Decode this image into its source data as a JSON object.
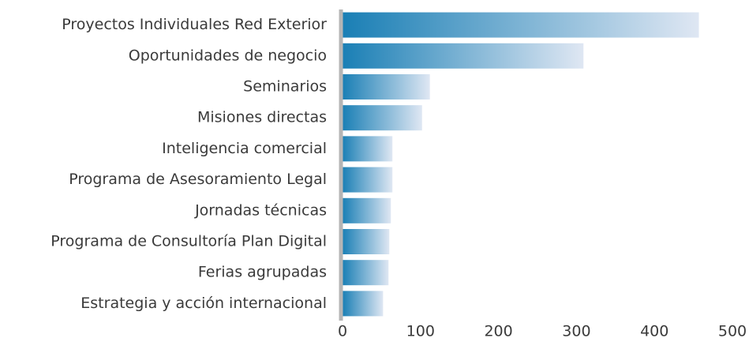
{
  "chart_data": {
    "type": "barh",
    "categories": [
      "Proyectos Individuales Red Exterior",
      "Oportunidades de negocio",
      "Seminarios",
      "Misiones directas",
      "Inteligencia comercial",
      "Programa de Asesoramiento Legal",
      "Jornadas técnicas",
      "Programa de Consultoría Plan Digital",
      "Ferias agrupadas",
      "Estrategia y acción internacional"
    ],
    "values": [
      457,
      309,
      112,
      102,
      64,
      64,
      62,
      60,
      59,
      52
    ],
    "color": "#1a7fb5",
    "gradient_end": "#dfe7f3",
    "xlim": [
      0,
      500
    ],
    "xticks": [
      0,
      100,
      200,
      300,
      400,
      500
    ]
  }
}
